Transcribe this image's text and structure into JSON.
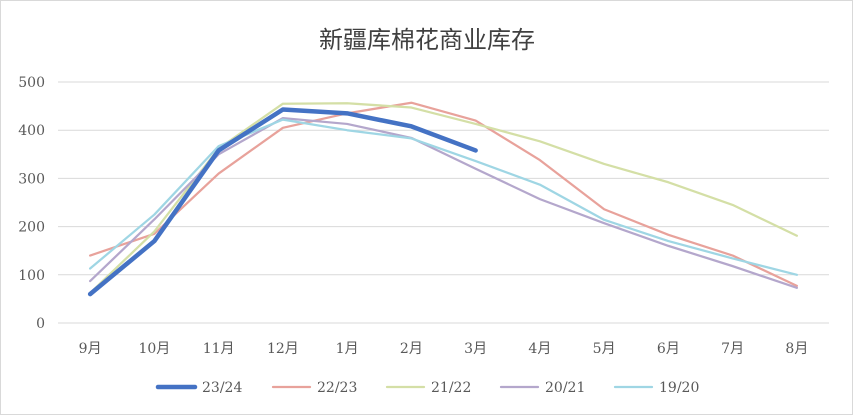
{
  "chart_data": {
    "type": "line",
    "title": "新疆库棉花商业库存",
    "xlabel": "",
    "ylabel": "",
    "categories": [
      "9月",
      "10月",
      "11月",
      "12月",
      "1月",
      "2月",
      "3月",
      "4月",
      "5月",
      "6月",
      "7月",
      "8月"
    ],
    "ylim": [
      0,
      500
    ],
    "yticks": [
      0,
      100,
      200,
      300,
      400,
      500
    ],
    "grid": true,
    "legend_position": "bottom",
    "series": [
      {
        "name": "23/24",
        "color": "#4472c4",
        "emphasis": true,
        "values": [
          60,
          170,
          358,
          443,
          435,
          408,
          358,
          null,
          null,
          null,
          null,
          null
        ]
      },
      {
        "name": "22/23",
        "color": "#e8a29b",
        "values": [
          140,
          185,
          310,
          405,
          435,
          457,
          420,
          338,
          236,
          183,
          140,
          77
        ]
      },
      {
        "name": "21/22",
        "color": "#d4dfa6",
        "values": [
          62,
          190,
          362,
          455,
          456,
          447,
          413,
          377,
          330,
          292,
          245,
          181
        ]
      },
      {
        "name": "20/21",
        "color": "#b4a7cc",
        "values": [
          87,
          215,
          350,
          425,
          413,
          384,
          320,
          257,
          207,
          160,
          118,
          73
        ]
      },
      {
        "name": "19/20",
        "color": "#9fd6e4",
        "values": [
          113,
          225,
          367,
          422,
          400,
          383,
          336,
          287,
          214,
          170,
          134,
          100
        ]
      }
    ]
  }
}
